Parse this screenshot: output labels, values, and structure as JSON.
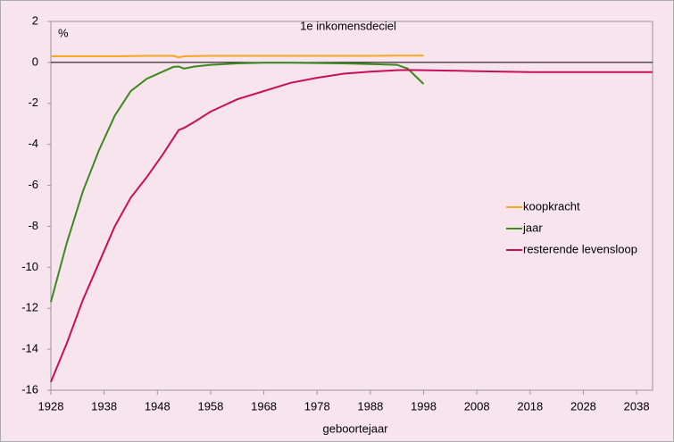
{
  "chart_data": {
    "type": "line",
    "title": "1e inkomensdeciel",
    "y_unit": "%",
    "xlabel": "geboortejaar",
    "x": [
      1928,
      1931,
      1934,
      1937,
      1940,
      1943,
      1946,
      1949,
      1951,
      1952,
      1953,
      1955,
      1958,
      1963,
      1968,
      1973,
      1978,
      1983,
      1988,
      1993,
      1995,
      1998,
      2003,
      2008,
      2013,
      2018,
      2023,
      2028,
      2033,
      2038,
      2041
    ],
    "series": [
      {
        "name": "koopkracht",
        "color": "#f7a823",
        "values": [
          0.3,
          0.3,
          0.3,
          0.3,
          0.3,
          0.31,
          0.32,
          0.32,
          0.32,
          0.25,
          0.3,
          0.31,
          0.32,
          0.32,
          0.32,
          0.32,
          0.32,
          0.32,
          0.32,
          0.33,
          0.33,
          0.33,
          null,
          null,
          null,
          null,
          null,
          null,
          null,
          null,
          null
        ]
      },
      {
        "name": "jaar",
        "color": "#3a8a1e",
        "values": [
          -11.7,
          -8.8,
          -6.3,
          -4.3,
          -2.6,
          -1.4,
          -0.8,
          -0.45,
          -0.22,
          -0.2,
          -0.3,
          -0.2,
          -0.12,
          -0.05,
          -0.02,
          -0.02,
          -0.03,
          -0.05,
          -0.08,
          -0.12,
          -0.3,
          -1.05,
          null,
          null,
          null,
          null,
          null,
          null,
          null,
          null,
          null
        ]
      },
      {
        "name": "resterende levensloop",
        "color": "#c8105a",
        "values": [
          -15.6,
          -13.7,
          -11.6,
          -9.8,
          -8.0,
          -6.6,
          -5.6,
          -4.5,
          -3.7,
          -3.3,
          -3.2,
          -2.9,
          -2.4,
          -1.8,
          -1.4,
          -1.0,
          -0.75,
          -0.55,
          -0.45,
          -0.38,
          -0.37,
          -0.38,
          -0.4,
          -0.43,
          -0.45,
          -0.47,
          -0.47,
          -0.47,
          -0.47,
          -0.47,
          -0.47
        ]
      }
    ],
    "xlim": [
      1928,
      2041
    ],
    "xticks": [
      1928,
      1938,
      1948,
      1958,
      1968,
      1978,
      1988,
      1998,
      2008,
      2018,
      2028,
      2038
    ],
    "ylim": [
      -16,
      2
    ],
    "yticks": [
      2,
      0,
      -2,
      -4,
      -6,
      -8,
      -10,
      -12,
      -14,
      -16
    ],
    "grid": false,
    "legend": "right"
  }
}
